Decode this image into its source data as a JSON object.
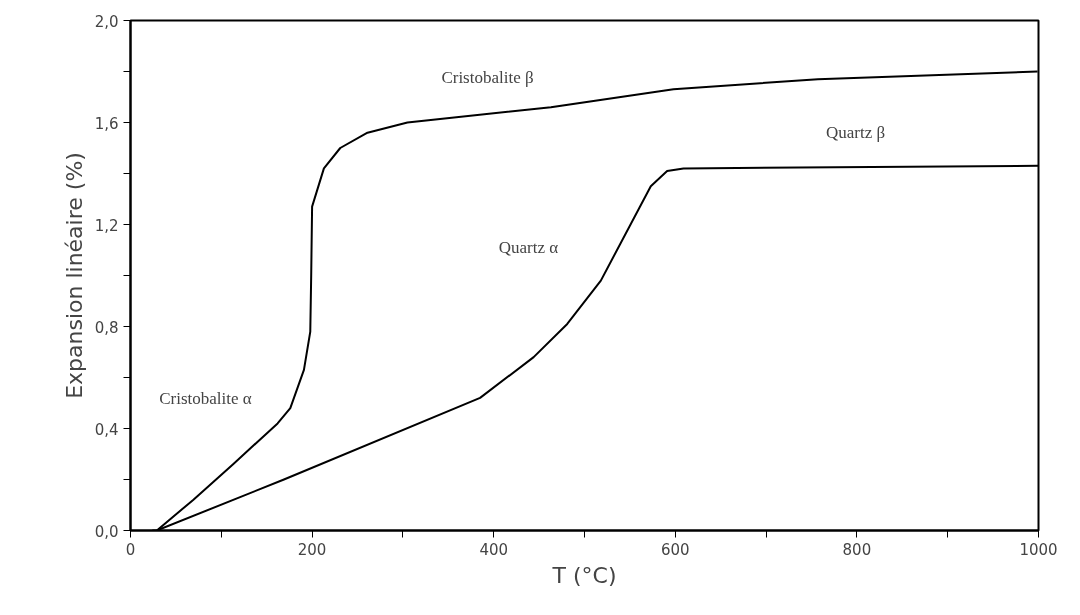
{
  "chart_data": {
    "type": "line",
    "xlabel": "T (°C)",
    "ylabel": "Expansion linéaire (%)",
    "x": [
      24,
      29,
      69,
      113,
      162,
      176,
      191,
      198,
      199,
      200,
      213,
      231,
      261,
      305,
      463,
      598,
      757,
      999
    ],
    "series": [
      {
        "color": "#000000",
        "values": [
          0,
          0,
          0.12,
          0.26,
          0.42,
          0.48,
          0.63,
          0.78,
          1.0,
          1.27,
          1.42,
          1.5,
          1.56,
          1.6,
          1.66,
          1.73,
          1.77,
          1.8
        ]
      },
      {
        "color": "#000000",
        "x": [
          29,
          169,
          385,
          444,
          481,
          518,
          573,
          591,
          609,
          1000
        ],
        "values": [
          0,
          0.2,
          0.52,
          0.68,
          0.81,
          0.98,
          1.35,
          1.41,
          1.42,
          1.43
        ]
      }
    ],
    "annotations": [
      "Cristobalite β",
      "Quartz α",
      "Quartz β",
      "Cristobalite α"
    ],
    "xlim": [
      0,
      1000
    ],
    "xticks": [
      0,
      {
        "value": 100,
        "label": null
      },
      200,
      {
        "value": 300,
        "label": null
      },
      400,
      {
        "value": 500,
        "label": null
      },
      600,
      {
        "value": 700,
        "label": null
      },
      800,
      {
        "value": 900,
        "label": null
      },
      1000
    ],
    "ylim": [
      0,
      2.0
    ],
    "yticks": [
      {
        "value": 0,
        "label": "0,0"
      },
      {
        "value": 0.2,
        "label": null
      },
      {
        "value": 0.4,
        "label": "0,4"
      },
      {
        "value": 0.6,
        "label": null
      },
      {
        "value": 0.8,
        "label": "0,8"
      },
      {
        "value": 1.0,
        "label": null
      },
      {
        "value": 1.2,
        "label": "1,2"
      },
      {
        "value": 1.4,
        "label": null
      },
      {
        "value": 1.6,
        "label": "1,6"
      },
      {
        "value": 1.8,
        "label": null
      },
      {
        "value": 2.0,
        "label": "2,0"
      }
    ],
    "grid": false,
    "marker": "none",
    "line_style": "solid"
  }
}
